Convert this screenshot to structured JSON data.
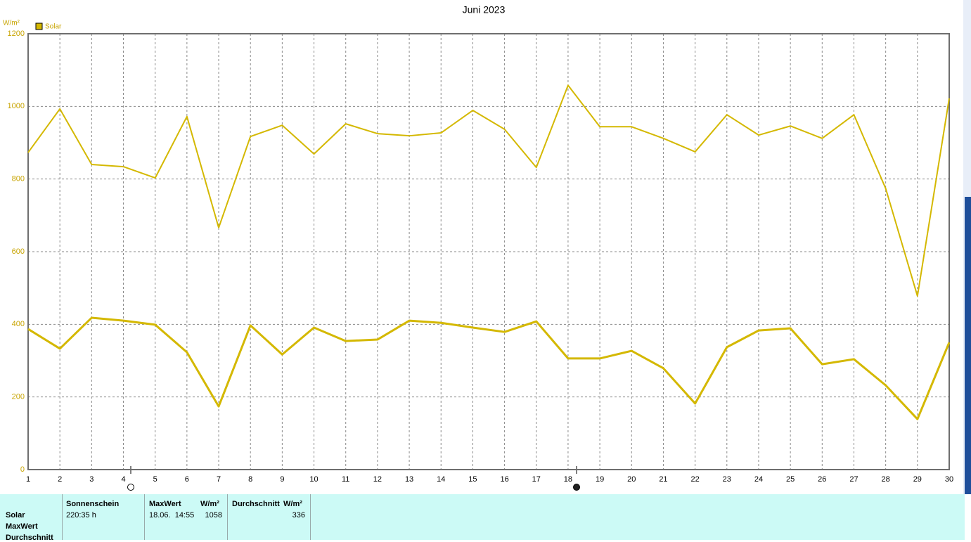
{
  "chart_data": {
    "type": "line",
    "title": "Juni 2023",
    "ylabel": "W/m²",
    "legend": "Solar",
    "x": [
      1,
      2,
      3,
      4,
      5,
      6,
      7,
      8,
      9,
      10,
      11,
      12,
      13,
      14,
      15,
      16,
      17,
      18,
      19,
      20,
      21,
      22,
      23,
      24,
      25,
      26,
      27,
      28,
      29,
      30
    ],
    "series": [
      {
        "color": "#d4b800",
        "values": [
          873,
          993,
          840,
          834,
          803,
          972,
          666,
          917,
          948,
          869,
          952,
          925,
          919,
          927,
          989,
          937,
          832,
          1058,
          944,
          944,
          912,
          875,
          977,
          921,
          946,
          912,
          977,
          774,
          478,
          1022
        ]
      },
      {
        "color": "#d4b800",
        "values": [
          387,
          333,
          418,
          410,
          399,
          323,
          174,
          397,
          317,
          391,
          354,
          358,
          410,
          404,
          391,
          379,
          408,
          306,
          306,
          327,
          279,
          182,
          337,
          383,
          389,
          290,
          304,
          232,
          139,
          350
        ]
      }
    ],
    "xlim": [
      1,
      30
    ],
    "xticks": [
      1,
      2,
      3,
      4,
      5,
      6,
      7,
      8,
      9,
      10,
      11,
      12,
      13,
      14,
      15,
      16,
      17,
      18,
      19,
      20,
      21,
      22,
      23,
      24,
      25,
      26,
      27,
      28,
      29,
      30
    ],
    "ylim": [
      0,
      1200
    ],
    "yticks": [
      0,
      200,
      400,
      600,
      800,
      1000,
      1200
    ],
    "grid": true
  },
  "summary": {
    "row_labels": [
      "Solar",
      "MaxWert",
      "Durchschnitt"
    ],
    "columns": [
      {
        "header": "Sonnenschein",
        "value": "220:35 h"
      },
      {
        "header": "MaxWert",
        "unit": "W/m²",
        "time": "18.06.  14:55",
        "value": 1058
      },
      {
        "header": "Durchschnitt",
        "unit": "W/m²",
        "value": 336
      }
    ]
  }
}
